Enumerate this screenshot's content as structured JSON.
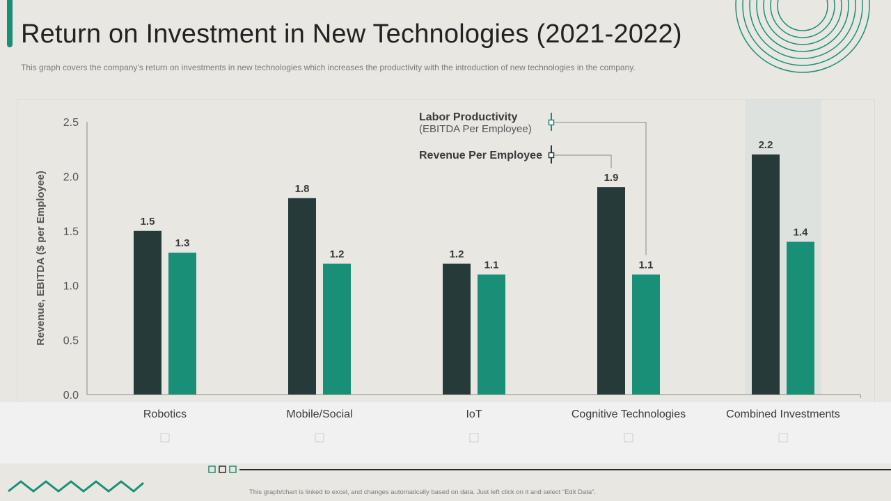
{
  "slide": {
    "title": "Return on Investment in New Technologies (2021-2022)",
    "subtitle": "This graph covers the company’s return on investments in new technologies which increases the productivity with the introduction of new technologies in the company.",
    "footer_note": "This graph/chart is linked to excel, and changes automatically based on data. Just left click on it and select “Edit Data”."
  },
  "colors": {
    "accent": "#1a8f78",
    "dark_series": "#263a3a",
    "green_series": "#1a8f78",
    "highlight_band": "#dde2df"
  },
  "chart_data": {
    "type": "bar",
    "title": "",
    "xlabel": "",
    "ylabel": "Revenue, EBITDA ($ per Employee)",
    "ylim": [
      0,
      2.5
    ],
    "yticks": [
      "0.0",
      "0.5",
      "1.0",
      "1.5",
      "2.0",
      "2.5"
    ],
    "ytick_values": [
      0,
      0.5,
      1.0,
      1.5,
      2.0,
      2.5
    ],
    "categories": [
      "Robotics",
      "Mobile/Social",
      "IoT",
      "Cognitive Technologies",
      "Combined Investments"
    ],
    "highlighted_category": "Combined Investments",
    "series": [
      {
        "name": "Revenue Per Employee",
        "values": [
          1.5,
          1.8,
          1.2,
          1.9,
          2.2
        ],
        "labels": [
          "1.5",
          "1.8",
          "1.2",
          "1.9",
          "2.2"
        ]
      },
      {
        "name": "Labor Productivity",
        "values": [
          1.3,
          1.2,
          1.1,
          1.1,
          1.4
        ],
        "labels": [
          "1.3",
          "1.2",
          "1.1",
          "1.1",
          "1.4"
        ]
      }
    ],
    "annotations": [
      {
        "series_index": 1,
        "category_index": 3,
        "title": "Labor Productivity",
        "subtitle": "(EBITDA Per Employee)"
      },
      {
        "series_index": 0,
        "category_index": 3,
        "title": "Revenue Per Employee",
        "subtitle": ""
      }
    ]
  }
}
